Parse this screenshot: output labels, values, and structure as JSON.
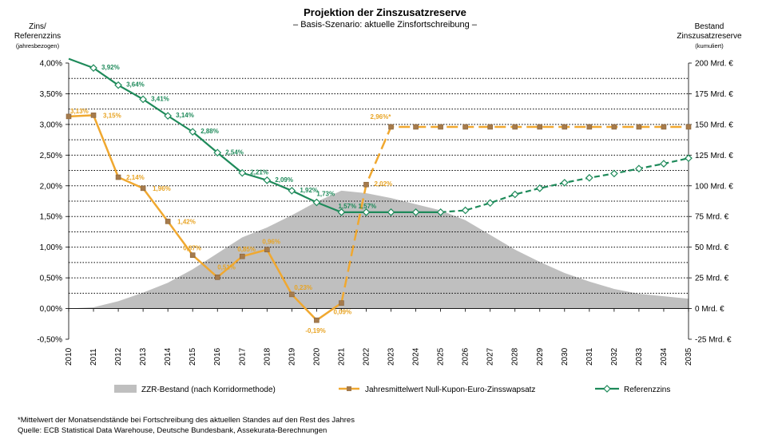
{
  "chart_data": {
    "type": "line",
    "title": "Projektion der Zinszusatzreserve",
    "subtitle": "– Basis-Szenario: aktuelle Zinsfortschreibung –",
    "left_axis": {
      "title_line1": "Zins/",
      "title_line2": "Referenzzins",
      "title_note": "(jahresbezogen)",
      "range": [
        -0.5,
        4.0
      ],
      "ticks": [
        "4,00%",
        "3,50%",
        "3,00%",
        "2,50%",
        "2,00%",
        "1,50%",
        "1,00%",
        "0,50%",
        "0,00%",
        "-0,50%"
      ]
    },
    "right_axis": {
      "title_line1": "Bestand",
      "title_line2": "Zinszusatzreserve",
      "title_note": "(kumuliert)",
      "range": [
        -25,
        200
      ],
      "ticks": [
        "200 Mrd. €",
        "175 Mrd. €",
        "150 Mrd. €",
        "125 Mrd. €",
        "100 Mrd. €",
        "75 Mrd. €",
        "50 Mrd. €",
        "25 Mrd. €",
        "0 Mrd. €",
        "-25 Mrd. €"
      ]
    },
    "x_labels": [
      "2010",
      "2011",
      "2012",
      "2013",
      "2014",
      "2015",
      "2016",
      "2017",
      "2018",
      "2019",
      "2020",
      "2021",
      "2022",
      "2023",
      "2024",
      "2025",
      "2026",
      "2027",
      "2028",
      "2029",
      "2030",
      "2031",
      "2032",
      "2033",
      "2034",
      "2035"
    ],
    "x_start": 2010,
    "x_end": 2035,
    "series": [
      {
        "name": "ZZR-Bestand (nach Korridormethode)",
        "kind": "area",
        "color": "#bfbfbf",
        "axis": "right",
        "x": [
          2010,
          2011,
          2012,
          2013,
          2014,
          2015,
          2016,
          2017,
          2018,
          2019,
          2020,
          2021,
          2022,
          2023,
          2024,
          2025,
          2026,
          2027,
          2028,
          2029,
          2030,
          2031,
          2032,
          2033,
          2034,
          2035
        ],
        "values": [
          0,
          1,
          6,
          13,
          21,
          32,
          45,
          58,
          66,
          76,
          87,
          96,
          94,
          90,
          85,
          80,
          72,
          60,
          48,
          38,
          29,
          22,
          16,
          12,
          10,
          8
        ]
      },
      {
        "name": "Jahresmittelwert Null-Kupon-Euro-Zinsswapsatz",
        "kind": "line",
        "color": "#f0a830",
        "axis": "left",
        "dashed_from": 2021,
        "x": [
          2010,
          2011,
          2012,
          2013,
          2014,
          2015,
          2016,
          2017,
          2018,
          2019,
          2020,
          2021,
          2022,
          2023,
          2024,
          2025,
          2026,
          2027,
          2028,
          2029,
          2030,
          2031,
          2032,
          2033,
          2034,
          2035
        ],
        "values": [
          3.13,
          3.15,
          2.14,
          1.96,
          1.42,
          0.87,
          0.51,
          0.85,
          0.96,
          0.23,
          -0.19,
          0.09,
          2.02,
          2.96,
          2.96,
          2.96,
          2.96,
          2.96,
          2.96,
          2.96,
          2.96,
          2.96,
          2.96,
          2.96,
          2.96,
          2.96
        ],
        "labels": [
          "3,13%",
          "3,15%",
          "2,14%",
          "1,96%",
          "1,42%",
          "0,87%",
          "0,51%",
          "0,85%",
          "0,96%",
          "0,23%",
          "-0,19%",
          "0,09%",
          "2,02%",
          "2,96%*"
        ]
      },
      {
        "name": "Referenzzins",
        "kind": "line",
        "color": "#1e8a5a",
        "axis": "left",
        "dashed_from": 2025,
        "x": [
          2010,
          2011,
          2012,
          2013,
          2014,
          2015,
          2016,
          2017,
          2018,
          2019,
          2020,
          2021,
          2022,
          2023,
          2024,
          2025,
          2026,
          2027,
          2028,
          2029,
          2030,
          2031,
          2032,
          2033,
          2034,
          2035
        ],
        "values": [
          4.07,
          3.92,
          3.64,
          3.41,
          3.14,
          2.88,
          2.54,
          2.21,
          2.09,
          1.92,
          1.73,
          1.57,
          1.57,
          1.57,
          1.57,
          1.57,
          1.6,
          1.72,
          1.86,
          1.96,
          2.05,
          2.13,
          2.2,
          2.28,
          2.36,
          2.45
        ],
        "labels": [
          "",
          "3,92%",
          "3,64%",
          "3,41%",
          "3,14%",
          "2,88%",
          "2,54%",
          "2,21%",
          "2,09%",
          "1,92%",
          "1,73%",
          "1,57%",
          "1,57%"
        ]
      }
    ],
    "legend": {
      "area": "ZZR-Bestand (nach Korridormethode)",
      "orange": "Jahresmittelwert Null-Kupon-Euro-Zinsswapsatz",
      "green": "Referenzzins"
    },
    "grid": "dotted horizontal lines"
  },
  "footnote": "*Mittelwert der Monatsendstände bei Fortschreibung des aktuellen Standes auf den Rest des Jahres",
  "source": "Quelle:   ECB Statistical Data Warehouse, Deutsche Bundesbank, Assekurata-Berechnungen"
}
